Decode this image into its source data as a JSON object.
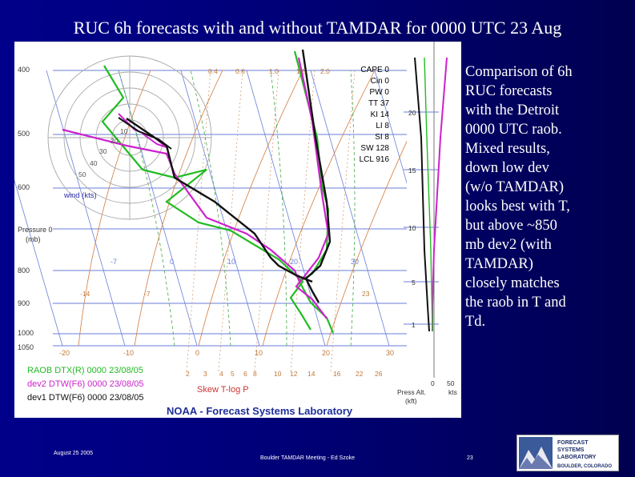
{
  "slide": {
    "title": "RUC 6h forecasts with and without TAMDAR for 0000 UTC 23 Aug",
    "body_lines": [
      "Comparison of 6h",
      "RUC forecasts",
      "with the Detroit",
      "0000 UTC raob.",
      "Mixed results,",
      "down low dev",
      "(w/o TAMDAR)",
      "looks best with T,",
      "but above ~850",
      "mb dev2 (with",
      "TAMDAR)",
      "closely matches",
      "the raob in T and",
      "Td."
    ],
    "footer_date": "August 25 2005",
    "footer_meeting": "Boulder TAMDAR Meeting - Ed Szoke",
    "page_number": "23",
    "logo_lines": [
      "FORECAST",
      "SYSTEMS",
      "LABORATORY",
      "BOULDER, COLORADO"
    ]
  },
  "skewt": {
    "pressure_labels": [
      "400",
      "500",
      "600",
      "Pressure 0",
      "(mb)",
      "800",
      "900",
      "1000",
      "1050"
    ],
    "wind_rings": [
      "10",
      "20",
      "30",
      "40",
      "50"
    ],
    "wind_title": "wind (kts)",
    "indices": [
      "CAPE 0",
      "Cin 0",
      "PW 0",
      "TT 37",
      "KI 14",
      "LI 8",
      "SI 8",
      "SW 128",
      "LCL 916"
    ],
    "top_mixing": [
      "0.4",
      "0.6",
      "1.0",
      "1.5",
      "2.0"
    ],
    "mid_temps": [
      "-7",
      "0",
      "10",
      "20",
      "30"
    ],
    "mid_temps_alt": [
      "-14",
      "-7",
      "23"
    ],
    "bottom_temps": [
      "-20",
      "-10",
      "0",
      "10",
      "20",
      "30"
    ],
    "mixing_ratios": [
      "2",
      "3",
      "4",
      "5",
      "6",
      "8",
      "10",
      "12",
      "14",
      "16",
      "22",
      "26"
    ],
    "legend": [
      {
        "text": "RAOB DTX(R) 0000 23/08/05",
        "color": "#22bb22"
      },
      {
        "text": "dev2 DTW(F6) 0000 23/08/05",
        "color": "#cc22cc"
      },
      {
        "text": "dev1 DTW(F6) 0000 23/08/05",
        "color": "#111111"
      }
    ],
    "plot_type": "Skew T-log P",
    "credit": "NOAA - Forecast Systems Laboratory",
    "alt_labels": [
      "20",
      "15",
      "10",
      "5",
      "1"
    ],
    "alt_axis": [
      "0",
      "50"
    ],
    "alt_axis_titles": [
      "Press Alt.",
      "(kft)",
      "kts"
    ]
  }
}
